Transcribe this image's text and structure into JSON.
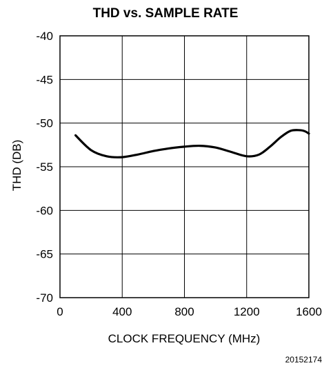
{
  "chart_data": {
    "type": "line",
    "title": "THD vs. SAMPLE RATE",
    "xlabel": "CLOCK FREQUENCY (MHz)",
    "ylabel": "THD (DB)",
    "xlim": [
      0,
      1600
    ],
    "ylim": [
      -70,
      -40
    ],
    "xticks": [
      0,
      400,
      800,
      1200,
      1600
    ],
    "yticks": [
      -40,
      -45,
      -50,
      -55,
      -60,
      -65,
      -70
    ],
    "x_tick_labels": [
      "0",
      "400",
      "800",
      "1200",
      "1600"
    ],
    "y_tick_labels": [
      "-40",
      "-45",
      "-50",
      "-55",
      "-60",
      "-65",
      "-70"
    ],
    "grid": true,
    "series": [
      {
        "color": "#000000",
        "x": [
          100,
          200,
          300,
          400,
          500,
          600,
          700,
          800,
          900,
          1000,
          1100,
          1200,
          1280,
          1350,
          1420,
          1480,
          1530,
          1570,
          1600
        ],
        "y": [
          -51.4,
          -53.1,
          -53.8,
          -53.9,
          -53.6,
          -53.2,
          -52.9,
          -52.7,
          -52.6,
          -52.8,
          -53.3,
          -53.8,
          -53.6,
          -52.7,
          -51.6,
          -50.9,
          -50.8,
          -50.9,
          -51.2
        ]
      }
    ]
  },
  "figure_id": "20152174"
}
